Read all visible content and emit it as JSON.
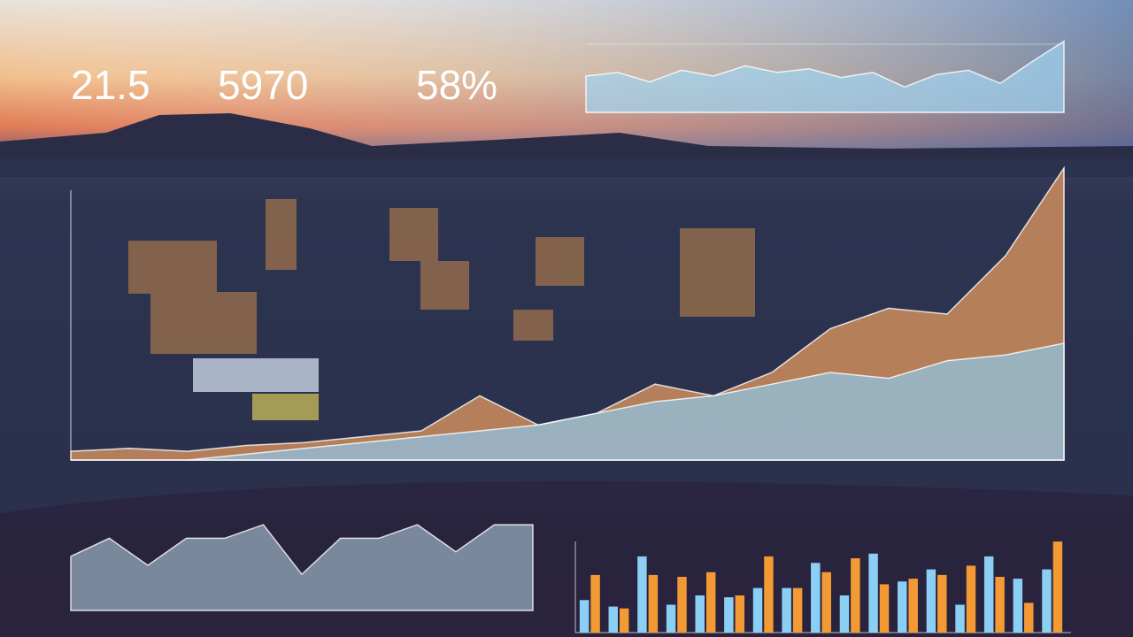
{
  "kpis": [
    "21.5",
    "5970",
    "58%"
  ],
  "chart_data": [
    {
      "type": "area",
      "color": "#9fd4f2",
      "ylim": [
        0,
        100
      ],
      "series": [
        {
          "values": [
            50,
            55,
            42,
            58,
            50,
            64,
            55,
            60,
            48,
            55,
            35,
            52,
            58,
            40,
            70,
            98
          ]
        }
      ]
    },
    {
      "type": "area",
      "ylim": [
        0,
        100
      ],
      "series": [
        {
          "color": "#f0a060",
          "values": [
            3,
            4,
            3,
            5,
            6,
            8,
            10,
            22,
            12,
            16,
            26,
            22,
            30,
            45,
            52,
            50,
            70,
            100
          ]
        },
        {
          "color": "#8fc6e8",
          "values": [
            0,
            0,
            0,
            2,
            4,
            6,
            8,
            10,
            12,
            16,
            20,
            22,
            26,
            30,
            28,
            34,
            36,
            40
          ]
        }
      ]
    },
    {
      "type": "area",
      "color": "#9bb3c4",
      "ylim": [
        0,
        100
      ],
      "series": [
        {
          "values": [
            60,
            80,
            50,
            80,
            80,
            95,
            40,
            80,
            80,
            95,
            65,
            95,
            95
          ]
        }
      ]
    },
    {
      "type": "bar",
      "ylim": [
        0,
        100
      ],
      "series": [
        {
          "color": "#8ccff5",
          "values": [
            35,
            28,
            82,
            30,
            40,
            38,
            48,
            48,
            75,
            40,
            85,
            55,
            68,
            30,
            82,
            58,
            68
          ]
        },
        {
          "color": "#f39a35",
          "values": [
            62,
            26,
            62,
            60,
            65,
            40,
            82,
            48,
            65,
            80,
            52,
            58,
            62,
            72,
            60,
            32,
            98
          ]
        }
      ]
    }
  ]
}
